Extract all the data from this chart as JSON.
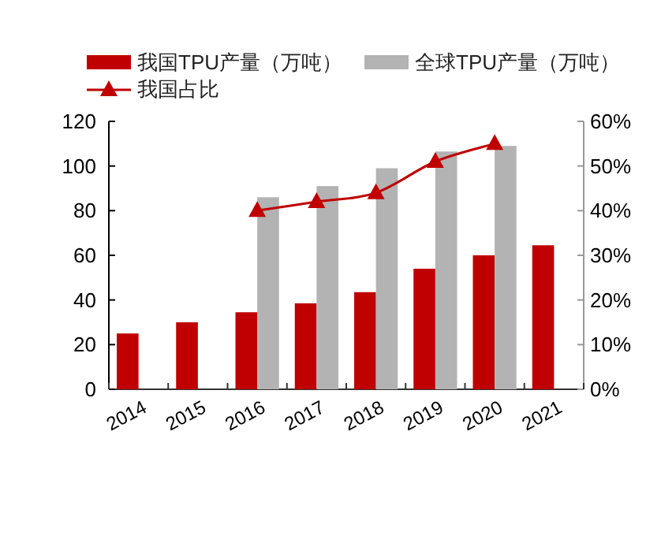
{
  "chart_data": {
    "type": "bar",
    "categories": [
      "2014",
      "2015",
      "2016",
      "2017",
      "2018",
      "2019",
      "2020",
      "2021"
    ],
    "series": [
      {
        "name": "我国TPU产量（万吨）",
        "color": "#c00000",
        "values": [
          25,
          30,
          34.5,
          38.5,
          43.5,
          54,
          60,
          64.5
        ]
      },
      {
        "name": "全球TPU产量（万吨）",
        "color": "#b3b3b3",
        "values": [
          null,
          null,
          86,
          91,
          99,
          106.5,
          109,
          null
        ]
      },
      {
        "name": "我国占比",
        "type": "line",
        "axis": "y2",
        "color": "#c00000",
        "values": [
          null,
          null,
          40,
          42,
          44,
          51,
          55,
          null
        ]
      }
    ],
    "ylim": [
      0,
      120
    ],
    "yticks": [
      0,
      20,
      40,
      60,
      80,
      100,
      120
    ],
    "y2lim": [
      0,
      60
    ],
    "y2ticks": [
      {
        "value": 0,
        "label": "0%"
      },
      {
        "value": 10,
        "label": "10%"
      },
      {
        "value": 20,
        "label": "20%"
      },
      {
        "value": 30,
        "label": "30%"
      },
      {
        "value": 40,
        "label": "40%"
      },
      {
        "value": 50,
        "label": "50%"
      },
      {
        "value": 60,
        "label": "60%"
      }
    ],
    "marker": "triangle",
    "legend": "top",
    "grid": false
  }
}
